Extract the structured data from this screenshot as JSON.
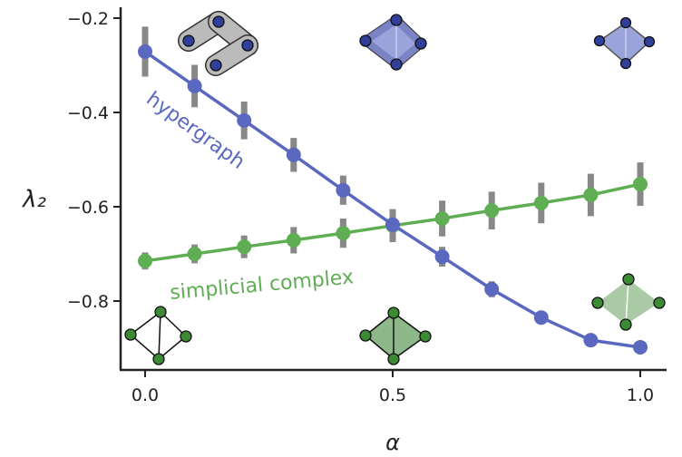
{
  "chart_data": {
    "type": "line",
    "title": "",
    "xlabel": "α",
    "ylabel": "λ₂",
    "xlim": [
      -0.05,
      1.05
    ],
    "ylim": [
      -0.946,
      -0.177
    ],
    "xticks": [
      0.0,
      0.5,
      1.0
    ],
    "xtick_labels": [
      "0.0",
      "0.5",
      "1.0"
    ],
    "yticks": [
      -0.2,
      -0.4,
      -0.6,
      -0.8
    ],
    "ytick_labels": [
      "−0.2",
      "−0.4",
      "−0.6",
      "−0.8"
    ],
    "grid": false,
    "x": [
      0.0,
      0.1,
      0.2,
      0.3,
      0.4,
      0.5,
      0.6,
      0.7,
      0.8,
      0.9,
      1.0
    ],
    "series": [
      {
        "name": "hypergraph",
        "color": "#5b68c0",
        "errcolor": "#888888",
        "values": [
          -0.271,
          -0.344,
          -0.417,
          -0.49,
          -0.565,
          -0.638,
          -0.706,
          -0.775,
          -0.835,
          -0.883,
          -0.898
        ],
        "errors": [
          0.053,
          0.045,
          0.04,
          0.036,
          0.031,
          0.026,
          0.021,
          0.017,
          0.014,
          0.011,
          0.0
        ]
      },
      {
        "name": "simplicial complex",
        "color": "#5fae54",
        "errcolor": "#888888",
        "values": [
          -0.715,
          -0.7,
          -0.685,
          -0.671,
          -0.656,
          -0.64,
          -0.625,
          -0.608,
          -0.592,
          -0.575,
          -0.552
        ],
        "errors": [
          0.018,
          0.02,
          0.024,
          0.028,
          0.031,
          0.035,
          0.038,
          0.04,
          0.043,
          0.045,
          0.046
        ]
      }
    ],
    "annotations": [
      "hypergraph",
      "simplicial complex"
    ]
  }
}
